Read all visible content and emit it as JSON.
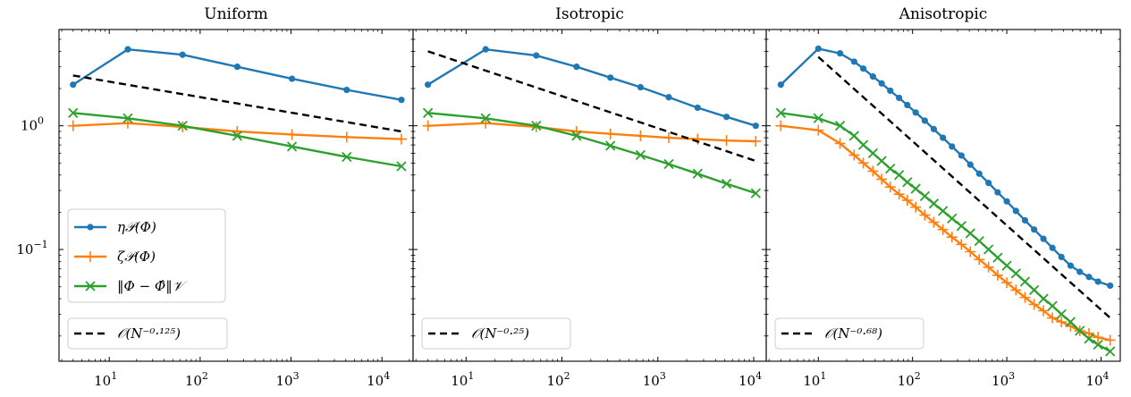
{
  "chart_data": [
    {
      "type": "line",
      "title": "Uniform",
      "xscale": "log",
      "yscale": "log",
      "xlim": [
        2.8,
        22000
      ],
      "ylim": [
        0.0125,
        6.0
      ],
      "xticks": [
        {
          "v": 10,
          "b": "10",
          "e": "1"
        },
        {
          "v": 100,
          "b": "10",
          "e": "2"
        },
        {
          "v": 1000,
          "b": "10",
          "e": "3"
        },
        {
          "v": 10000,
          "b": "10",
          "e": "4"
        }
      ],
      "yticks": [
        {
          "v": 1,
          "b": "10",
          "e": "0"
        },
        {
          "v": 0.1,
          "b": "10",
          "e": "−1"
        }
      ],
      "series": [
        {
          "key": "eta",
          "name": "η𝒫(Φ)",
          "color": "#1f77b4",
          "marker": "dot",
          "x": [
            4,
            16,
            64,
            256,
            1024,
            4096,
            16384
          ],
          "y": [
            2.15,
            4.15,
            3.75,
            3.0,
            2.4,
            1.95,
            1.62
          ]
        },
        {
          "key": "zeta",
          "name": "ζ𝒫(Φ)",
          "color": "#ff7f0e",
          "marker": "plus",
          "x": [
            4,
            16,
            64,
            256,
            1024,
            4096,
            16384
          ],
          "y": [
            1.0,
            1.05,
            0.98,
            0.9,
            0.85,
            0.81,
            0.78
          ]
        },
        {
          "key": "err",
          "name": "‖Φ − Φ̂‖𝒱",
          "color": "#2ca02c",
          "marker": "x",
          "x": [
            4,
            16,
            64,
            256,
            1024,
            4096,
            16384
          ],
          "y": [
            1.27,
            1.15,
            1.0,
            0.83,
            0.68,
            0.56,
            0.47
          ]
        },
        {
          "key": "ref",
          "name": "𝒪(N⁻⁰·¹²⁵)",
          "color": "#000000",
          "marker": "none",
          "dashed": true,
          "x": [
            4,
            16384
          ],
          "y": [
            2.55,
            0.9
          ]
        }
      ],
      "legend_main": "lower-left",
      "legend_ref": "lower-left"
    },
    {
      "type": "line",
      "title": "Isotropic",
      "xscale": "log",
      "yscale": "log",
      "xlim": [
        2.8,
        13500
      ],
      "ylim": [
        0.0125,
        6.0
      ],
      "xticks": [
        {
          "v": 10,
          "b": "10",
          "e": "1"
        },
        {
          "v": 100,
          "b": "10",
          "e": "2"
        },
        {
          "v": 1000,
          "b": "10",
          "e": "3"
        },
        {
          "v": 10000,
          "b": "10",
          "e": "4"
        }
      ],
      "yticks": [],
      "series": [
        {
          "key": "eta",
          "color": "#1f77b4",
          "marker": "dot",
          "x": [
            4,
            16,
            54,
            142,
            320,
            660,
            1300,
            2600,
            5200,
            10500
          ],
          "y": [
            2.15,
            4.15,
            3.7,
            3.0,
            2.45,
            2.05,
            1.7,
            1.4,
            1.18,
            1.0
          ]
        },
        {
          "key": "zeta",
          "color": "#ff7f0e",
          "marker": "plus",
          "x": [
            4,
            16,
            54,
            142,
            320,
            660,
            1300,
            2600,
            5200,
            10500
          ],
          "y": [
            1.0,
            1.05,
            0.98,
            0.9,
            0.86,
            0.83,
            0.8,
            0.78,
            0.76,
            0.75
          ]
        },
        {
          "key": "err",
          "color": "#2ca02c",
          "marker": "x",
          "x": [
            4,
            16,
            54,
            142,
            320,
            660,
            1300,
            2600,
            5200,
            10500
          ],
          "y": [
            1.27,
            1.15,
            1.0,
            0.83,
            0.69,
            0.58,
            0.49,
            0.41,
            0.34,
            0.285
          ]
        },
        {
          "key": "ref",
          "name": "𝒪(N⁻⁰·²⁵)",
          "color": "#000000",
          "marker": "none",
          "dashed": true,
          "x": [
            4,
            10500
          ],
          "y": [
            4.0,
            0.52
          ]
        }
      ],
      "legend_ref": "lower-left"
    },
    {
      "type": "line",
      "title": "Anisotropic",
      "xscale": "log",
      "yscale": "log",
      "xlim": [
        2.8,
        16000
      ],
      "ylim": [
        0.0125,
        6.0
      ],
      "xticks": [
        {
          "v": 10,
          "b": "10",
          "e": "1"
        },
        {
          "v": 100,
          "b": "10",
          "e": "2"
        },
        {
          "v": 1000,
          "b": "10",
          "e": "3"
        },
        {
          "v": 10000,
          "b": "10",
          "e": "4"
        }
      ],
      "yticks": [],
      "series": [
        {
          "key": "eta",
          "color": "#1f77b4",
          "marker": "dot",
          "x": [
            4,
            10,
            17,
            24,
            30,
            38,
            47,
            58,
            72,
            88,
            108,
            135,
            168,
            210,
            262,
            330,
            410,
            510,
            640,
            800,
            1000,
            1250,
            1560,
            1950,
            2450,
            3050,
            3800,
            4750,
            5950,
            7450,
            9300,
            12500
          ],
          "y": [
            2.15,
            4.2,
            3.85,
            3.3,
            2.9,
            2.5,
            2.2,
            1.92,
            1.68,
            1.47,
            1.28,
            1.1,
            0.94,
            0.8,
            0.68,
            0.575,
            0.485,
            0.41,
            0.345,
            0.29,
            0.245,
            0.205,
            0.172,
            0.145,
            0.122,
            0.103,
            0.087,
            0.074,
            0.066,
            0.06,
            0.055,
            0.051
          ]
        },
        {
          "key": "zeta",
          "color": "#ff7f0e",
          "marker": "plus",
          "x": [
            4,
            10,
            17,
            24,
            30,
            38,
            47,
            58,
            72,
            88,
            108,
            135,
            168,
            210,
            262,
            330,
            410,
            510,
            640,
            800,
            1000,
            1250,
            1560,
            1950,
            2450,
            3050,
            3800,
            4750,
            5950,
            7450,
            9300,
            12500
          ],
          "y": [
            1.0,
            0.92,
            0.72,
            0.58,
            0.5,
            0.43,
            0.37,
            0.32,
            0.28,
            0.25,
            0.22,
            0.19,
            0.166,
            0.145,
            0.126,
            0.11,
            0.096,
            0.083,
            0.072,
            0.062,
            0.054,
            0.047,
            0.041,
            0.036,
            0.032,
            0.028,
            0.026,
            0.024,
            0.022,
            0.021,
            0.0195,
            0.0185
          ]
        },
        {
          "key": "err",
          "color": "#2ca02c",
          "marker": "x",
          "x": [
            4,
            10,
            17,
            24,
            30,
            38,
            47,
            58,
            72,
            88,
            108,
            135,
            168,
            210,
            262,
            330,
            410,
            510,
            640,
            800,
            1000,
            1250,
            1560,
            1950,
            2450,
            3050,
            3800,
            4750,
            5950,
            7450,
            9300,
            12500
          ],
          "y": [
            1.27,
            1.15,
            1.0,
            0.83,
            0.7,
            0.6,
            0.52,
            0.45,
            0.4,
            0.35,
            0.31,
            0.27,
            0.235,
            0.205,
            0.178,
            0.155,
            0.135,
            0.117,
            0.1,
            0.086,
            0.074,
            0.064,
            0.055,
            0.047,
            0.04,
            0.035,
            0.03,
            0.026,
            0.022,
            0.019,
            0.017,
            0.015
          ]
        },
        {
          "key": "ref",
          "name": "𝒪(N⁻⁰·⁶⁸)",
          "color": "#000000",
          "marker": "none",
          "dashed": true,
          "x": [
            10,
            12500
          ],
          "y": [
            3.6,
            0.028
          ]
        }
      ],
      "legend_ref": "lower-left"
    }
  ]
}
